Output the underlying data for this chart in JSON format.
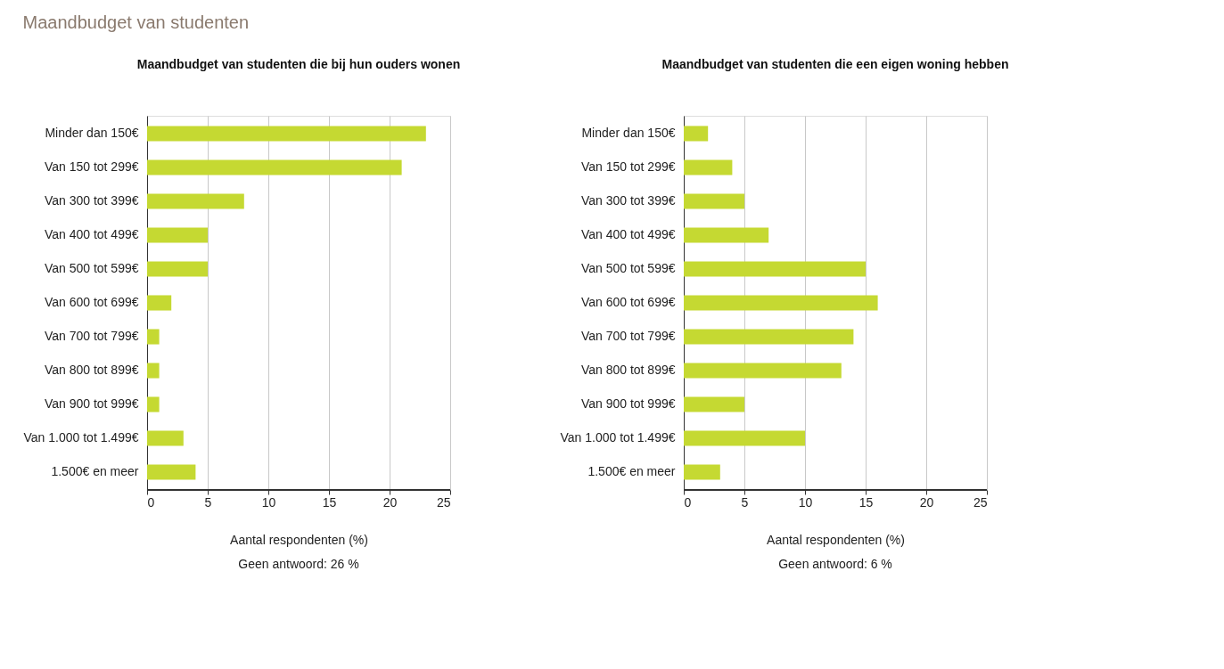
{
  "chart_data": [
    {
      "type": "bar",
      "orientation": "horizontal",
      "title": "Maandbudget van studenten die bij hun ouders wonen",
      "xlabel": "Aantal respondenten (%)",
      "categories": [
        "Minder dan 150€",
        "Van 150 tot 299€",
        "Van 300 tot 399€",
        "Van 400 tot 499€",
        "Van 500 tot 599€",
        "Van 600 tot 699€",
        "Van 700 tot 799€",
        "Van 800 tot 899€",
        "Van 900 tot 999€",
        "Van 1.000 tot 1.499€",
        "1.500€ en meer"
      ],
      "values": [
        23,
        21,
        8,
        5,
        5,
        2,
        1,
        1,
        1,
        3,
        4
      ],
      "color": "#c5d932",
      "xlim": [
        0,
        25
      ],
      "xticks": [
        0,
        5,
        10,
        15,
        20,
        25
      ],
      "grid": "x",
      "annotations": [
        "Maandbudget van studenten",
        "Geen antwoord: 26 %"
      ]
    },
    {
      "type": "bar",
      "orientation": "horizontal",
      "title": "Maandbudget van studenten die een eigen woning hebben",
      "xlabel": "Aantal respondenten (%)",
      "categories": [
        "Minder dan 150€",
        "Van 150 tot 299€",
        "Van 300 tot 399€",
        "Van 400 tot 499€",
        "Van 500 tot 599€",
        "Van 600 tot 699€",
        "Van 700 tot 799€",
        "Van 800 tot 899€",
        "Van 900 tot 999€",
        "Van 1.000 tot 1.499€",
        "1.500€ en meer"
      ],
      "values": [
        2,
        4,
        5,
        7,
        15,
        16,
        14,
        13,
        5,
        10,
        3
      ],
      "color": "#c5d932",
      "xlim": [
        0,
        25
      ],
      "xticks": [
        0,
        5,
        10,
        15,
        20,
        25
      ],
      "grid": "x",
      "annotations": [
        "Geen antwoord: 6 %"
      ]
    }
  ]
}
